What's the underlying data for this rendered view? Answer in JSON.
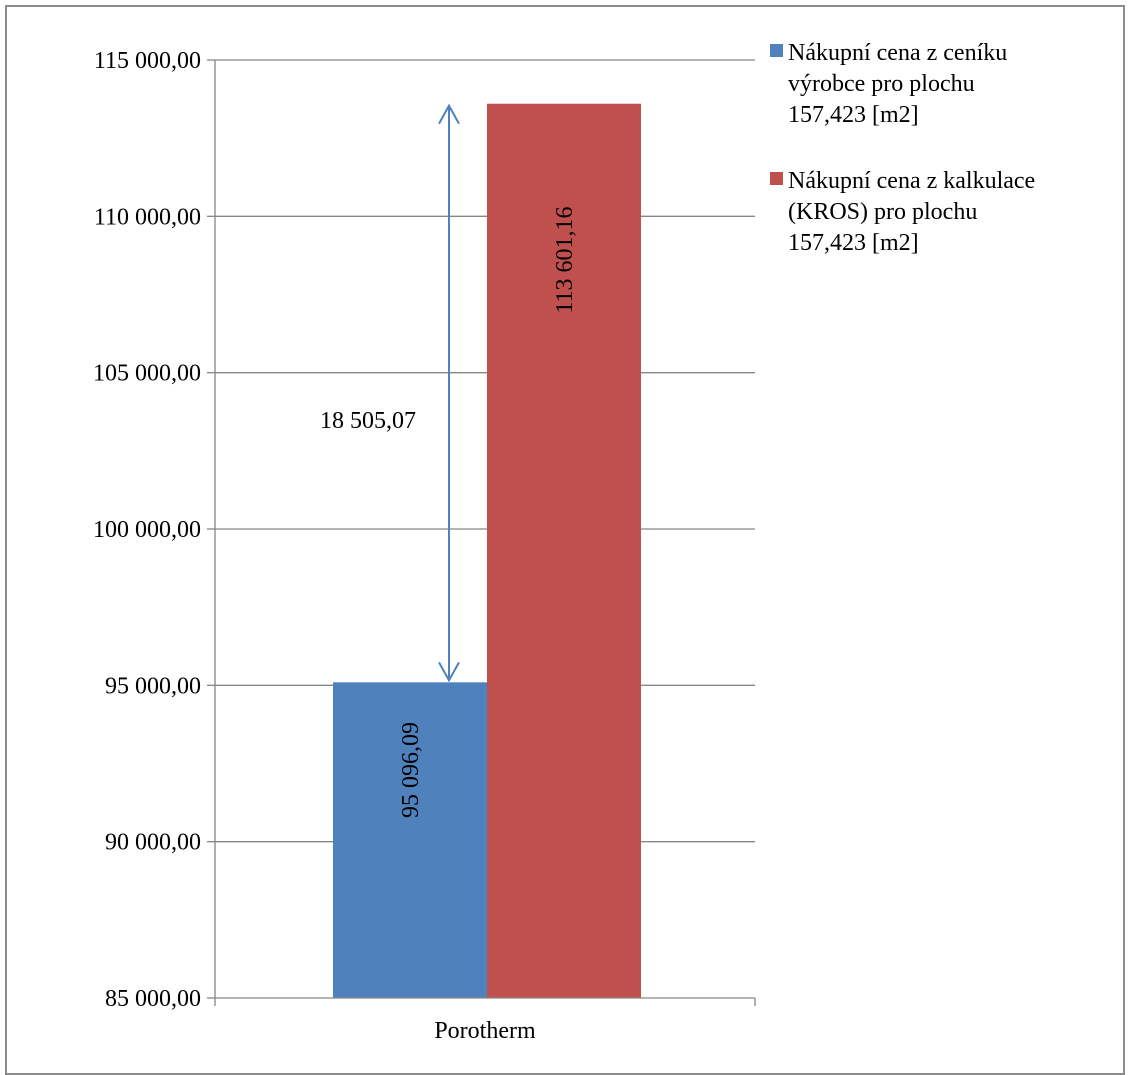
{
  "chart_data": {
    "type": "bar",
    "categories": [
      "Porotherm"
    ],
    "series": [
      {
        "name": "Nákupní cena z ceníku výrobce pro plochu 157,423 [m2]",
        "values": [
          95096.09
        ],
        "color": "#4f81bd",
        "label": "95 096,09"
      },
      {
        "name": "Nákupní cena z kalkulace (KROS)  pro plochu 157,423 [m2]",
        "values": [
          113601.16
        ],
        "color": "#c0504d",
        "label": "113 601,16"
      }
    ],
    "ylim": [
      85000,
      115000
    ],
    "yticks": [
      {
        "value": 85000,
        "label": "85 000,00"
      },
      {
        "value": 90000,
        "label": "90 000,00"
      },
      {
        "value": 95000,
        "label": "95 000,00"
      },
      {
        "value": 100000,
        "label": "100 000,00"
      },
      {
        "value": 105000,
        "label": "105 000,00"
      },
      {
        "value": 110000,
        "label": "110 000,00"
      },
      {
        "value": 115000,
        "label": "115 000,00"
      }
    ],
    "grid": true,
    "legend_position": "right",
    "legend_lines": [
      [
        "Nákupní cena z ceníku",
        "výrobce pro plochu",
        "157,423 [m2]"
      ],
      [
        "Nákupní cena z kalkulace",
        "(KROS)  pro plochu",
        "157,423 [m2]"
      ]
    ],
    "annotation": {
      "text": "18 505,07",
      "from": 95096.09,
      "to": 113601.16,
      "color": "#4f81bd"
    },
    "title": "",
    "xlabel": "",
    "ylabel": ""
  }
}
